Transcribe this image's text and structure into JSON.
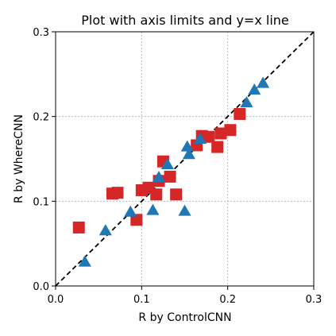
{
  "chart_data": {
    "type": "scatter",
    "title": "Plot with axis limits and y=x line",
    "xlabel": "R by ControlCNN",
    "ylabel": "R by WhereCNN",
    "xlim": [
      0.0,
      0.3
    ],
    "ylim": [
      0.0,
      0.3
    ],
    "xticks": [
      0.0,
      0.1,
      0.2,
      0.3
    ],
    "yticks": [
      0.0,
      0.1,
      0.2,
      0.3
    ],
    "xtick_labels": [
      "0.0",
      "0.1",
      "0.2",
      "0.3"
    ],
    "ytick_labels": [
      "0.0",
      "0.1",
      "0.2",
      "0.3"
    ],
    "grid": true,
    "reference_line": {
      "kind": "y=x",
      "style": "dashed",
      "color": "#000000"
    },
    "series": [
      {
        "marker": "square",
        "color": "#d62728",
        "points": [
          [
            0.027,
            0.069
          ],
          [
            0.066,
            0.109
          ],
          [
            0.072,
            0.11
          ],
          [
            0.094,
            0.078
          ],
          [
            0.1,
            0.113
          ],
          [
            0.108,
            0.116
          ],
          [
            0.117,
            0.108
          ],
          [
            0.12,
            0.124
          ],
          [
            0.125,
            0.147
          ],
          [
            0.133,
            0.129
          ],
          [
            0.14,
            0.108
          ],
          [
            0.164,
            0.166
          ],
          [
            0.17,
            0.177
          ],
          [
            0.178,
            0.176
          ],
          [
            0.188,
            0.164
          ],
          [
            0.192,
            0.18
          ],
          [
            0.203,
            0.184
          ],
          [
            0.214,
            0.203
          ]
        ]
      },
      {
        "marker": "triangle",
        "color": "#1f77b4",
        "points": [
          [
            0.034,
            0.028
          ],
          [
            0.058,
            0.065
          ],
          [
            0.087,
            0.087
          ],
          [
            0.113,
            0.089
          ],
          [
            0.12,
            0.128
          ],
          [
            0.13,
            0.143
          ],
          [
            0.15,
            0.088
          ],
          [
            0.153,
            0.164
          ],
          [
            0.155,
            0.155
          ],
          [
            0.168,
            0.173
          ],
          [
            0.222,
            0.216
          ],
          [
            0.231,
            0.231
          ],
          [
            0.241,
            0.239
          ]
        ]
      }
    ]
  }
}
